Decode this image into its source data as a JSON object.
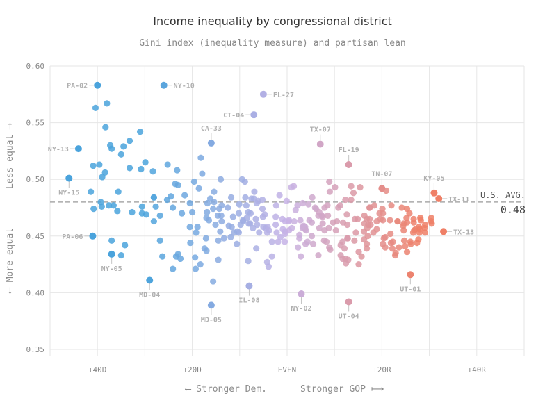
{
  "chart_data": {
    "type": "scatter",
    "title": "Income inequality by congressional district",
    "subtitle": "Gini index (inequality measure) and partisan lean",
    "xlabel_left": "⟵ Stronger Dem.",
    "xlabel_right": "Stronger GOP ⟼",
    "ylabel_top": "Less equal ⟶",
    "ylabel_bottom": "⟵ More equal",
    "xlim": [
      -50,
      50
    ],
    "ylim": [
      0.35,
      0.6
    ],
    "x_ticks": [
      {
        "value": -40,
        "label": "+40D"
      },
      {
        "value": -20,
        "label": "+20D"
      },
      {
        "value": 0,
        "label": "EVEN"
      },
      {
        "value": 20,
        "label": "+20R"
      },
      {
        "value": 40,
        "label": "+40R"
      }
    ],
    "y_ticks": [
      {
        "value": 0.35,
        "label": "0.35"
      },
      {
        "value": 0.4,
        "label": "0.40"
      },
      {
        "value": 0.45,
        "label": "0.45"
      },
      {
        "value": 0.5,
        "label": "0.50"
      },
      {
        "value": 0.55,
        "label": "0.55"
      },
      {
        "value": 0.6,
        "label": "0.60"
      }
    ],
    "grid": true,
    "color_scale": {
      "dem": "#4aa3dc",
      "mid": "#c7b3e6",
      "gop": "#ef7f66"
    },
    "reference_line": {
      "label": "U.S. AVG.",
      "value": 0.48,
      "value_label": "0.48"
    },
    "labeled_points": [
      {
        "name": "PA-02",
        "x": -40,
        "y": 0.583,
        "side": "left"
      },
      {
        "name": "NY-10",
        "x": -26,
        "y": 0.583,
        "side": "right"
      },
      {
        "name": "FL-27",
        "x": -5,
        "y": 0.575,
        "side": "right"
      },
      {
        "name": "CT-04",
        "x": -7,
        "y": 0.557,
        "side": "left"
      },
      {
        "name": "CA-33",
        "x": -16,
        "y": 0.532,
        "side": "above"
      },
      {
        "name": "TX-07",
        "x": 7,
        "y": 0.531,
        "side": "above"
      },
      {
        "name": "FL-19",
        "x": 13,
        "y": 0.513,
        "side": "above"
      },
      {
        "name": "NY-13",
        "x": -44,
        "y": 0.527,
        "side": "left"
      },
      {
        "name": "NY-15",
        "x": -46,
        "y": 0.501,
        "side": "below"
      },
      {
        "name": "TN-07",
        "x": 20,
        "y": 0.492,
        "side": "above"
      },
      {
        "name": "KY-05",
        "x": 31,
        "y": 0.488,
        "side": "above"
      },
      {
        "name": "TX-11",
        "x": 32,
        "y": 0.483,
        "side": "right"
      },
      {
        "name": "TX-13",
        "x": 33,
        "y": 0.454,
        "side": "right"
      },
      {
        "name": "PA-06",
        "x": -41,
        "y": 0.45,
        "side": "left"
      },
      {
        "name": "NY-05",
        "x": -37,
        "y": 0.434,
        "side": "below"
      },
      {
        "name": "UT-01",
        "x": 26,
        "y": 0.416,
        "side": "below"
      },
      {
        "name": "MD-04",
        "x": -29,
        "y": 0.411,
        "side": "below"
      },
      {
        "name": "IL-08",
        "x": -8,
        "y": 0.406,
        "side": "below"
      },
      {
        "name": "NY-02",
        "x": 3,
        "y": 0.399,
        "side": "below"
      },
      {
        "name": "UT-04",
        "x": 13,
        "y": 0.392,
        "side": "below"
      },
      {
        "name": "MD-05",
        "x": -16,
        "y": 0.389,
        "side": "below"
      }
    ],
    "points": [
      [
        -39.6,
        0.513
      ],
      [
        -30.6,
        0.47
      ],
      [
        -25.2,
        0.513
      ],
      [
        -40.9,
        0.512
      ],
      [
        -23,
        0.495
      ],
      [
        -27.7,
        0.476
      ],
      [
        -24.1,
        0.475
      ],
      [
        -33.2,
        0.51
      ],
      [
        -38,
        0.567
      ],
      [
        -36.6,
        0.477
      ],
      [
        -37.6,
        0.477
      ],
      [
        -29.9,
        0.515
      ],
      [
        -23.4,
        0.432
      ],
      [
        -35,
        0.433
      ],
      [
        -34.5,
        0.529
      ],
      [
        -28.1,
        0.484
      ],
      [
        -40.8,
        0.474
      ],
      [
        -20.5,
        0.458
      ],
      [
        -25.3,
        0.482
      ],
      [
        -23.2,
        0.508
      ],
      [
        -39,
        0.502
      ],
      [
        -24.5,
        0.485
      ],
      [
        -37.3,
        0.53
      ],
      [
        -38.3,
        0.546
      ],
      [
        -31,
        0.542
      ],
      [
        -24.1,
        0.421
      ],
      [
        -37,
        0.527
      ],
      [
        -40.4,
        0.563
      ],
      [
        -39.1,
        0.476
      ],
      [
        -30.6,
        0.476
      ],
      [
        -35,
        0.522
      ],
      [
        -23,
        0.434
      ],
      [
        -37,
        0.446
      ],
      [
        -38.4,
        0.506
      ],
      [
        -32.7,
        0.471
      ],
      [
        -30.8,
        0.509
      ],
      [
        -33.2,
        0.534
      ],
      [
        -26.3,
        0.432
      ],
      [
        -28.1,
        0.484
      ],
      [
        -35.8,
        0.472
      ],
      [
        -41.4,
        0.489
      ],
      [
        -39.3,
        0.48
      ],
      [
        -26.8,
        0.468
      ],
      [
        -34.2,
        0.442
      ],
      [
        -28.3,
        0.507
      ],
      [
        -29.7,
        0.469
      ],
      [
        -35.6,
        0.489
      ],
      [
        -26.8,
        0.446
      ],
      [
        -28.1,
        0.463
      ],
      [
        -23.6,
        0.496
      ],
      [
        -19.4,
        0.431
      ],
      [
        -13.8,
        0.477
      ],
      [
        -13.8,
        0.463
      ],
      [
        -17.1,
        0.448
      ],
      [
        -20.4,
        0.444
      ],
      [
        -10.1,
        0.478
      ],
      [
        -18.9,
        0.458
      ],
      [
        -16.9,
        0.471
      ],
      [
        -14.5,
        0.446
      ],
      [
        -10.5,
        0.454
      ],
      [
        -16.8,
        0.479
      ],
      [
        -17,
        0.466
      ],
      [
        -19.6,
        0.498
      ],
      [
        -14.5,
        0.429
      ],
      [
        -22.5,
        0.43
      ],
      [
        -15.1,
        0.46
      ],
      [
        -12.5,
        0.475
      ],
      [
        -11.4,
        0.467
      ],
      [
        -16.5,
        0.464
      ],
      [
        -15.6,
        0.474
      ],
      [
        -22.2,
        0.47
      ],
      [
        -17,
        0.437
      ],
      [
        -14.1,
        0.454
      ],
      [
        -14,
        0.5
      ],
      [
        -11.7,
        0.458
      ],
      [
        -12.3,
        0.459
      ],
      [
        -15.6,
        0.41
      ],
      [
        -15.4,
        0.489
      ],
      [
        -10.2,
        0.47
      ],
      [
        -13.9,
        0.468
      ],
      [
        -21.6,
        0.486
      ],
      [
        -19.3,
        0.421
      ],
      [
        -16.2,
        0.483
      ],
      [
        -18.3,
        0.425
      ],
      [
        -14.3,
        0.474
      ],
      [
        -15.4,
        0.48
      ],
      [
        -18.2,
        0.519
      ],
      [
        -10.2,
        0.453
      ],
      [
        -11.8,
        0.484
      ],
      [
        -13.3,
        0.448
      ],
      [
        -19.2,
        0.453
      ],
      [
        -20.5,
        0.479
      ],
      [
        -14.6,
        0.468
      ],
      [
        -18.6,
        0.492
      ],
      [
        -10.6,
        0.443
      ],
      [
        -17.9,
        0.505
      ],
      [
        -11.2,
        0.453
      ],
      [
        -20,
        0.471
      ],
      [
        -11.9,
        0.449
      ],
      [
        -17.4,
        0.439
      ],
      [
        -7,
        0.483
      ],
      [
        -4.5,
        0.457
      ],
      [
        -2.2,
        0.453
      ],
      [
        -0.4,
        0.452
      ],
      [
        -2.4,
        0.46
      ],
      [
        -3.2,
        0.432
      ],
      [
        -6.6,
        0.465
      ],
      [
        -7.7,
        0.47
      ],
      [
        -0.5,
        0.445
      ],
      [
        -5.1,
        0.467
      ],
      [
        -8.9,
        0.498
      ],
      [
        -0.1,
        0.481
      ],
      [
        -9.3,
        0.464
      ],
      [
        -1.9,
        0.445
      ],
      [
        -5.2,
        0.482
      ],
      [
        -8.5,
        0.466
      ],
      [
        -4.1,
        0.458
      ],
      [
        -6.3,
        0.46
      ],
      [
        -8.2,
        0.428
      ],
      [
        -2.4,
        0.467
      ],
      [
        -8.1,
        0.461
      ],
      [
        -3.8,
        0.455
      ],
      [
        -7.2,
        0.457
      ],
      [
        -8.6,
        0.477
      ],
      [
        -5.9,
        0.453
      ],
      [
        -9.5,
        0.5
      ],
      [
        -1.6,
        0.486
      ],
      [
        -2.3,
        0.477
      ],
      [
        -3.2,
        0.445
      ],
      [
        -0.4,
        0.454
      ],
      [
        -8.8,
        0.484
      ],
      [
        -6.5,
        0.439
      ],
      [
        -5,
        0.458
      ],
      [
        -0.4,
        0.463
      ],
      [
        -6.9,
        0.489
      ],
      [
        -7.5,
        0.483
      ],
      [
        -8.2,
        0.471
      ],
      [
        -4.7,
        0.469
      ],
      [
        -5.2,
        0.474
      ],
      [
        -4.2,
        0.427
      ],
      [
        -3.9,
        0.423
      ],
      [
        -9.8,
        0.46
      ],
      [
        -1,
        0.465
      ],
      [
        -9.3,
        0.463
      ],
      [
        -4.2,
        0.453
      ],
      [
        -1.4,
        0.449
      ],
      [
        -6.4,
        0.479
      ],
      [
        -6.1,
        0.481
      ],
      [
        -0.9,
        0.456
      ],
      [
        -7.8,
        0.461
      ],
      [
        3.8,
        0.458
      ],
      [
        7.9,
        0.475
      ],
      [
        7.5,
        0.467
      ],
      [
        9,
        0.489
      ],
      [
        3.5,
        0.459
      ],
      [
        4.5,
        0.478
      ],
      [
        5.5,
        0.443
      ],
      [
        1.4,
        0.494
      ],
      [
        8.9,
        0.44
      ],
      [
        3.8,
        0.456
      ],
      [
        1,
        0.457
      ],
      [
        0.4,
        0.455
      ],
      [
        7.3,
        0.468
      ],
      [
        9.7,
        0.462
      ],
      [
        5.3,
        0.484
      ],
      [
        2.3,
        0.44
      ],
      [
        4.3,
        0.445
      ],
      [
        2.9,
        0.432
      ],
      [
        3.3,
        0.458
      ],
      [
        6.1,
        0.474
      ],
      [
        8.5,
        0.477
      ],
      [
        2.6,
        0.451
      ],
      [
        8.8,
        0.457
      ],
      [
        2.2,
        0.477
      ],
      [
        3.9,
        0.443
      ],
      [
        6.8,
        0.457
      ],
      [
        3.3,
        0.479
      ],
      [
        1.5,
        0.463
      ],
      [
        0.3,
        0.463
      ],
      [
        1.8,
        0.473
      ],
      [
        5.2,
        0.462
      ],
      [
        4.7,
        0.464
      ],
      [
        5.2,
        0.45
      ],
      [
        7.9,
        0.455
      ],
      [
        3.3,
        0.457
      ],
      [
        2.8,
        0.464
      ],
      [
        5.9,
        0.475
      ],
      [
        2.6,
        0.448
      ],
      [
        0.9,
        0.493
      ],
      [
        8.6,
        0.468
      ],
      [
        7.5,
        0.461
      ],
      [
        6.6,
        0.468
      ],
      [
        8.9,
        0.498
      ],
      [
        8.3,
        0.445
      ],
      [
        0.4,
        0.464
      ],
      [
        4,
        0.455
      ],
      [
        7.8,
        0.446
      ],
      [
        9.1,
        0.438
      ],
      [
        6.6,
        0.433
      ],
      [
        6.8,
        0.471
      ],
      [
        13.5,
        0.494
      ],
      [
        16.8,
        0.439
      ],
      [
        11.2,
        0.477
      ],
      [
        11.8,
        0.462
      ],
      [
        16.2,
        0.447
      ],
      [
        10.8,
        0.475
      ],
      [
        14.2,
        0.446
      ],
      [
        14.5,
        0.453
      ],
      [
        17.6,
        0.46
      ],
      [
        12.6,
        0.469
      ],
      [
        16.2,
        0.454
      ],
      [
        14,
        0.488
      ],
      [
        12.8,
        0.448
      ],
      [
        10.3,
        0.455
      ],
      [
        11.7,
        0.445
      ],
      [
        14.3,
        0.465
      ],
      [
        15.1,
        0.425
      ],
      [
        19.7,
        0.465
      ],
      [
        18.4,
        0.477
      ],
      [
        12.7,
        0.448
      ],
      [
        12.3,
        0.482
      ],
      [
        19.5,
        0.47
      ],
      [
        18.2,
        0.453
      ],
      [
        17,
        0.45
      ],
      [
        17.4,
        0.465
      ],
      [
        18.9,
        0.463
      ],
      [
        17.1,
        0.46
      ],
      [
        12.9,
        0.429
      ],
      [
        16.9,
        0.457
      ],
      [
        17.4,
        0.475
      ],
      [
        11.7,
        0.43
      ],
      [
        16.8,
        0.465
      ],
      [
        11.3,
        0.433
      ],
      [
        14.9,
        0.465
      ],
      [
        15.1,
        0.436
      ],
      [
        16.3,
        0.468
      ],
      [
        17.4,
        0.475
      ],
      [
        12.4,
        0.426
      ],
      [
        11.3,
        0.442
      ],
      [
        13.5,
        0.482
      ],
      [
        12.1,
        0.439
      ],
      [
        10.1,
        0.493
      ],
      [
        16.8,
        0.443
      ],
      [
        15.7,
        0.432
      ],
      [
        15.4,
        0.493
      ],
      [
        10.5,
        0.463
      ],
      [
        16.3,
        0.461
      ],
      [
        18.9,
        0.456
      ],
      [
        12.7,
        0.46
      ],
      [
        12.3,
        0.43
      ],
      [
        21.8,
        0.452
      ],
      [
        26,
        0.445
      ],
      [
        29,
        0.457
      ],
      [
        27.8,
        0.458
      ],
      [
        20.9,
        0.49
      ],
      [
        24.6,
        0.455
      ],
      [
        23.6,
        0.44
      ],
      [
        23.3,
        0.463
      ],
      [
        30.4,
        0.466
      ],
      [
        27.1,
        0.456
      ],
      [
        20.2,
        0.47
      ],
      [
        29.1,
        0.46
      ],
      [
        20.2,
        0.464
      ],
      [
        25.3,
        0.462
      ],
      [
        22.8,
        0.433
      ],
      [
        22.3,
        0.445
      ],
      [
        27.7,
        0.447
      ],
      [
        22,
        0.477
      ],
      [
        30.5,
        0.461
      ],
      [
        28.1,
        0.466
      ],
      [
        30.4,
        0.463
      ],
      [
        26.7,
        0.462
      ],
      [
        20.7,
        0.44
      ],
      [
        26.8,
        0.455
      ],
      [
        20.7,
        0.449
      ],
      [
        23.3,
        0.463
      ],
      [
        22.9,
        0.435
      ],
      [
        26.7,
        0.465
      ],
      [
        27.4,
        0.444
      ],
      [
        28,
        0.456
      ],
      [
        20.2,
        0.443
      ],
      [
        25.3,
        0.436
      ],
      [
        26.6,
        0.453
      ],
      [
        28.2,
        0.464
      ],
      [
        25.8,
        0.47
      ],
      [
        27.9,
        0.453
      ],
      [
        29.1,
        0.453
      ],
      [
        24.6,
        0.461
      ],
      [
        24.7,
        0.446
      ],
      [
        24.9,
        0.441
      ],
      [
        22.2,
        0.439
      ],
      [
        20.1,
        0.474
      ],
      [
        24.5,
        0.459
      ],
      [
        24.2,
        0.475
      ],
      [
        21.7,
        0.464
      ],
      [
        25.2,
        0.466
      ],
      [
        26.1,
        0.443
      ],
      [
        21.9,
        0.444
      ],
      [
        25.3,
        0.474
      ],
      [
        20.4,
        0.448
      ]
    ]
  }
}
